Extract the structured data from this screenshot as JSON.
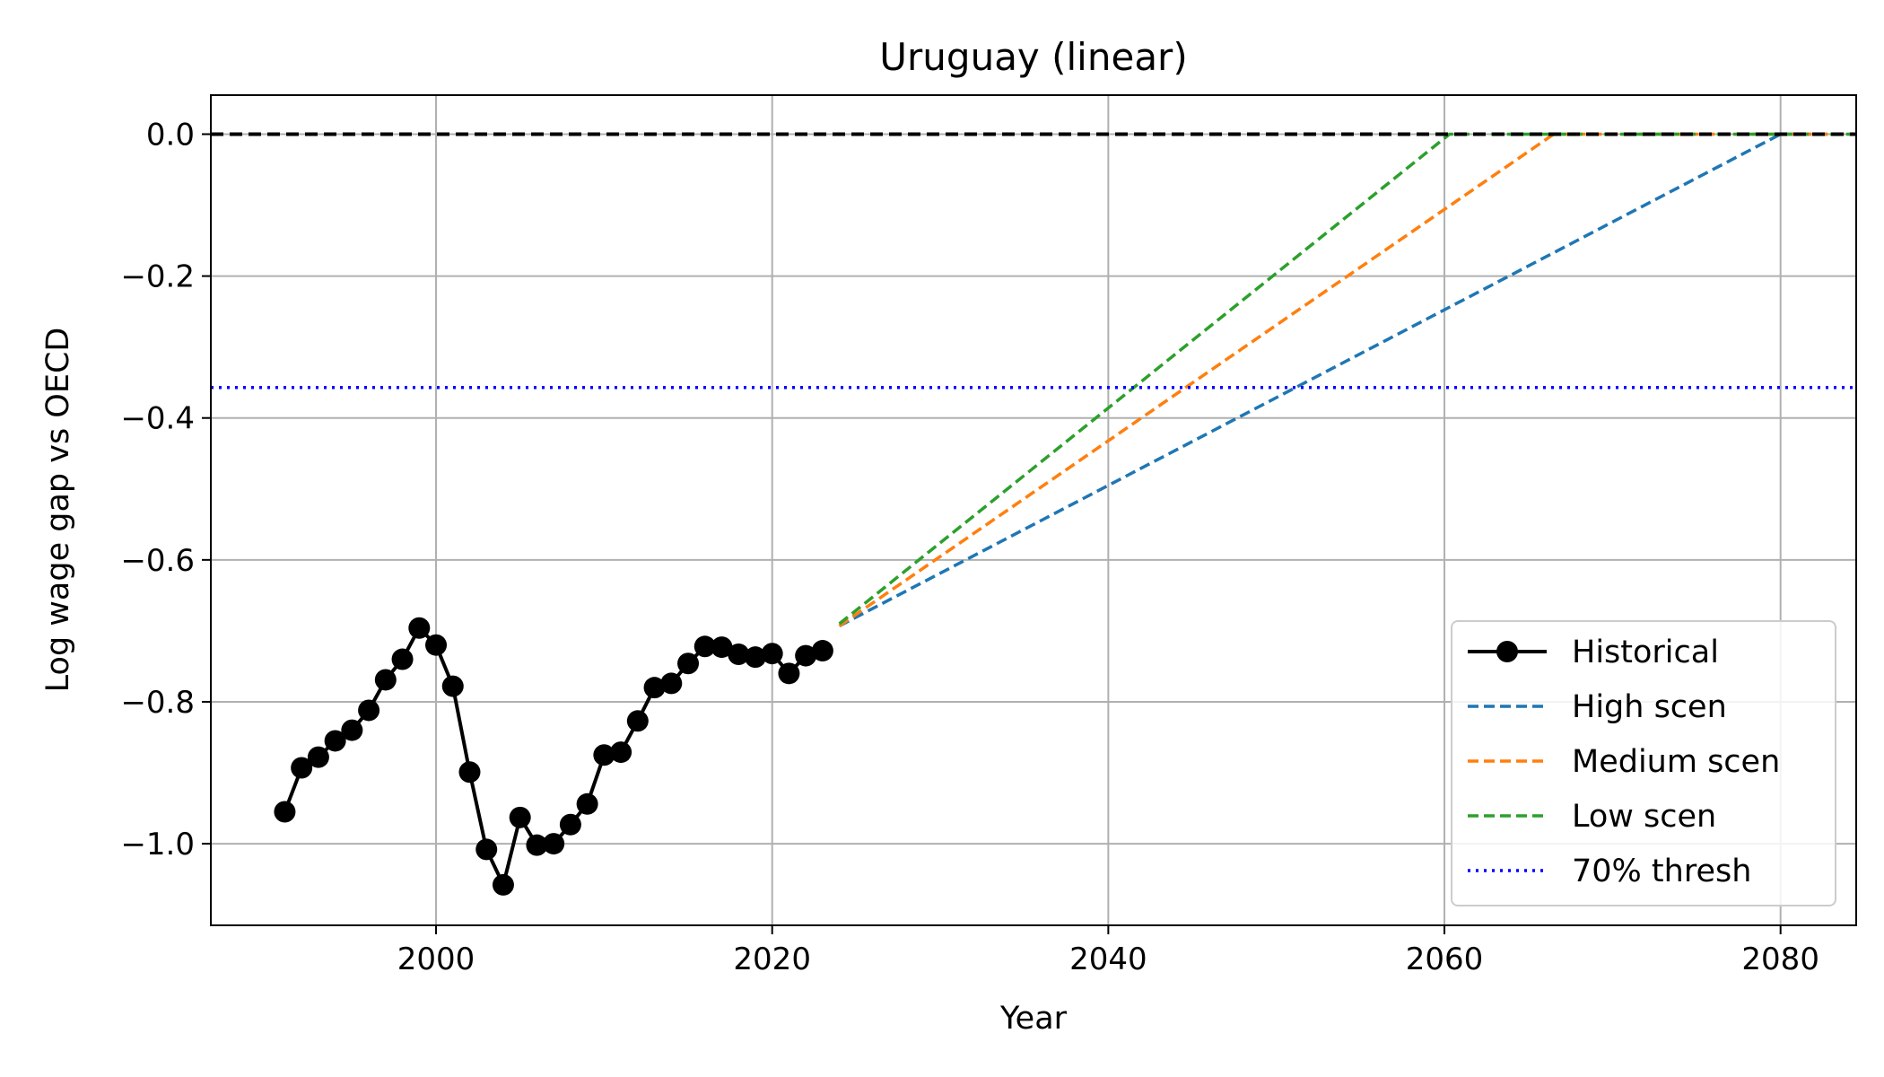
{
  "chart_data": {
    "type": "line",
    "title": "Uruguay (linear)",
    "xlabel": "Year",
    "ylabel": "Log wage gap vs OECD",
    "xlim": [
      1986.6,
      2084.5
    ],
    "ylim": [
      -1.115,
      0.055
    ],
    "xticks": [
      2000,
      2020,
      2040,
      2060,
      2080
    ],
    "xtick_labels": [
      "2000",
      "2020",
      "2040",
      "2060",
      "2080"
    ],
    "yticks": [
      0.0,
      -0.2,
      -0.4,
      -0.6,
      -0.8,
      -1.0
    ],
    "ytick_labels": [
      "0.0",
      "−0.2",
      "−0.4",
      "−0.6",
      "−0.8",
      "−1.0"
    ],
    "grid": true,
    "legend_position": "lower-right",
    "series": [
      {
        "name": "Historical",
        "style": "solid-marker",
        "color": "#000000",
        "x": [
          1991,
          1992,
          1993,
          1994,
          1995,
          1996,
          1997,
          1998,
          1999,
          2000,
          2001,
          2002,
          2003,
          2004,
          2005,
          2006,
          2007,
          2008,
          2009,
          2010,
          2011,
          2012,
          2013,
          2014,
          2015,
          2016,
          2017,
          2018,
          2019,
          2020,
          2021,
          2022,
          2023
        ],
        "y": [
          -0.955,
          -0.893,
          -0.878,
          -0.855,
          -0.84,
          -0.812,
          -0.769,
          -0.74,
          -0.696,
          -0.72,
          -0.778,
          -0.899,
          -1.008,
          -1.058,
          -0.963,
          -1.002,
          -1.0,
          -0.973,
          -0.944,
          -0.875,
          -0.871,
          -0.827,
          -0.78,
          -0.774,
          -0.746,
          -0.722,
          -0.723,
          -0.733,
          -0.737,
          -0.732,
          -0.76,
          -0.735,
          -0.728
        ]
      },
      {
        "name": "High scen",
        "style": "dashed",
        "color": "#1f77b4",
        "x": [
          2024,
          2080,
          2084.5
        ],
        "y": [
          -0.693,
          0.0,
          0.0
        ]
      },
      {
        "name": "Medium scen",
        "style": "dashed",
        "color": "#ff7f0e",
        "x": [
          2024,
          2066.5,
          2084.5
        ],
        "y": [
          -0.693,
          0.0,
          0.0
        ]
      },
      {
        "name": "Low scen",
        "style": "dashed",
        "color": "#2ca02c",
        "x": [
          2024,
          2060.3,
          2084.5
        ],
        "y": [
          -0.69,
          0.0,
          0.0
        ]
      },
      {
        "name": "70% thresh",
        "style": "dotted",
        "color": "#0000ff",
        "x": [
          1986.6,
          2084.5
        ],
        "y": [
          -0.357,
          -0.357
        ]
      }
    ],
    "reference_line": {
      "y": 0.0,
      "color": "#000000",
      "style": "dashed"
    }
  }
}
